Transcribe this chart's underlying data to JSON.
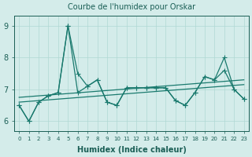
{
  "title": "Courbe de l'humidex pour Orskar",
  "xlabel": "Humidex (Indice chaleur)",
  "ylabel": "",
  "bg_color": "#d4ecea",
  "line_color": "#1a7a6e",
  "xlim": [
    -0.5,
    23.5
  ],
  "ylim": [
    5.7,
    9.3
  ],
  "yticks": [
    6,
    7,
    8,
    9
  ],
  "xtick_labels": [
    "0",
    "1",
    "2",
    "3",
    "4",
    "5",
    "6",
    "7",
    "8",
    "9",
    "10",
    "11",
    "12",
    "13",
    "14",
    "15",
    "16",
    "17",
    "18",
    "19",
    "20",
    "21",
    "22",
    "23"
  ],
  "series1_x": [
    0,
    1,
    2,
    3,
    4,
    5,
    6,
    7,
    8,
    9,
    10,
    11,
    12,
    13,
    14,
    15,
    16,
    17,
    18,
    19,
    20,
    21,
    22,
    23
  ],
  "series1_y": [
    6.5,
    6.0,
    6.6,
    6.8,
    6.9,
    9.0,
    7.5,
    7.1,
    7.3,
    6.6,
    6.5,
    7.05,
    7.05,
    7.05,
    7.05,
    7.05,
    6.65,
    6.5,
    6.9,
    7.4,
    7.3,
    8.0,
    7.0,
    6.7
  ],
  "series2_x": [
    0,
    1,
    2,
    3,
    4,
    5,
    6,
    7,
    8,
    9,
    10,
    11,
    12,
    13,
    14,
    15,
    16,
    17,
    18,
    19,
    20,
    21,
    22,
    23
  ],
  "series2_y": [
    6.5,
    6.0,
    6.6,
    6.8,
    6.9,
    9.0,
    6.9,
    7.1,
    7.3,
    6.6,
    6.5,
    7.05,
    7.05,
    7.05,
    7.05,
    7.05,
    6.65,
    6.5,
    6.9,
    7.4,
    7.3,
    7.6,
    7.0,
    6.7
  ],
  "trend1_x": [
    0,
    23
  ],
  "trend1_y": [
    6.75,
    7.3
  ],
  "trend2_x": [
    0,
    23
  ],
  "trend2_y": [
    6.6,
    7.15
  ],
  "grid_color": "#b0d8d4",
  "font_color": "#1a5e55"
}
